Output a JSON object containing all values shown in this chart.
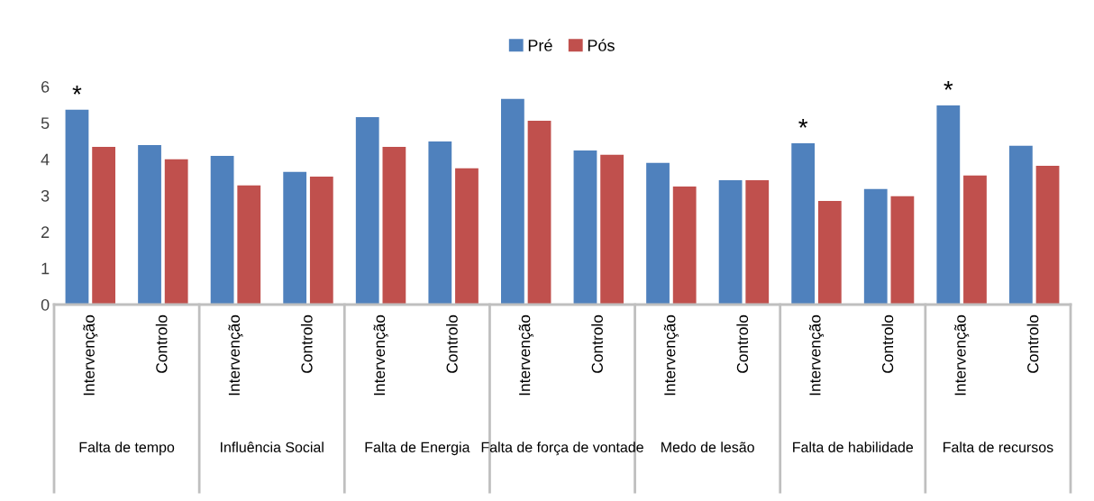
{
  "chart_data": {
    "type": "bar",
    "categories": [
      "Intervenção",
      "Controlo",
      "Intervenção",
      "Controlo",
      "Intervenção",
      "Controlo",
      "Intervenção",
      "Controlo",
      "Intervenção",
      "Controlo",
      "Intervenção",
      "Controlo",
      "Intervenção",
      "Controlo"
    ],
    "series": [
      {
        "name": "Pré",
        "color": "#4f81bd",
        "values": [
          5.36,
          4.39,
          4.09,
          3.65,
          5.16,
          4.49,
          5.66,
          4.24,
          3.9,
          3.42,
          4.44,
          3.18,
          5.48,
          4.37
        ]
      },
      {
        "name": "Pós",
        "color": "#c0504d",
        "values": [
          4.34,
          4.0,
          3.28,
          3.52,
          4.34,
          3.75,
          5.06,
          4.12,
          3.25,
          3.42,
          2.85,
          2.98,
          3.55,
          3.82
        ]
      }
    ],
    "ylim": [
      0,
      6
    ],
    "yticks": [
      0,
      1,
      2,
      3,
      4,
      5,
      6
    ],
    "grid": false,
    "legend": "top",
    "annotations": [
      "Falta de tempo",
      "Influência Social",
      "Falta de Energia",
      "Falta de força de vontade",
      "Medo de lesão",
      "Falta de habilidade",
      "Falta de recursos",
      {
        "text": "*",
        "y": 5.36
      },
      {
        "text": "*",
        "y": 4.44
      },
      {
        "text": "*",
        "y": 5.48
      }
    ]
  }
}
